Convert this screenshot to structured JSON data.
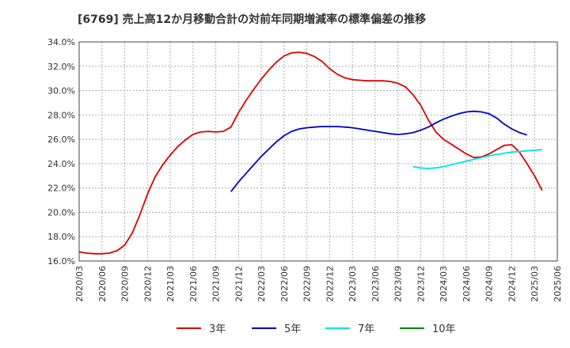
{
  "chart_data": {
    "type": "line",
    "title": "[6769]  売上高12か月移動合計の対前年同期増減率の標準偏差の推移",
    "xlabel": "",
    "ylabel": "",
    "ylim": [
      16.0,
      34.0
    ],
    "y_ticks": [
      "16.0%",
      "18.0%",
      "20.0%",
      "22.0%",
      "24.0%",
      "26.0%",
      "28.0%",
      "30.0%",
      "32.0%",
      "34.0%"
    ],
    "x_ticks": [
      "2020/03",
      "2020/06",
      "2020/09",
      "2020/12",
      "2021/03",
      "2021/06",
      "2021/09",
      "2021/12",
      "2022/03",
      "2022/06",
      "2022/09",
      "2022/12",
      "2023/03",
      "2023/06",
      "2023/09",
      "2023/12",
      "2024/03",
      "2024/06",
      "2024/09",
      "2024/12",
      "2025/03",
      "2025/06"
    ],
    "grid": true,
    "legend_position": "bottom",
    "series": [
      {
        "name": "3年",
        "color": "#dd0000",
        "start_index": 0,
        "values": [
          16.75,
          16.65,
          16.6,
          16.6,
          16.65,
          16.85,
          17.3,
          18.3,
          19.8,
          21.5,
          22.9,
          23.9,
          24.7,
          25.4,
          25.95,
          26.4,
          26.6,
          26.65,
          26.6,
          26.65,
          27.0,
          28.2,
          29.2,
          30.1,
          30.95,
          31.7,
          32.35,
          32.85,
          33.1,
          33.15,
          33.05,
          32.8,
          32.4,
          31.8,
          31.35,
          31.05,
          30.9,
          30.85,
          30.8,
          30.8,
          30.8,
          30.75,
          30.6,
          30.3,
          29.65,
          28.8,
          27.6,
          26.6,
          26.0,
          25.6,
          25.2,
          24.8,
          24.5,
          24.55,
          24.8,
          25.15,
          25.5,
          25.55,
          24.95,
          24.0,
          23.0,
          21.8
        ]
      },
      {
        "name": "5年",
        "color": "#0000cc",
        "start_index": 20,
        "values": [
          21.7,
          22.5,
          23.2,
          23.9,
          24.6,
          25.2,
          25.8,
          26.3,
          26.65,
          26.85,
          26.95,
          27.0,
          27.05,
          27.05,
          27.05,
          27.0,
          26.95,
          26.85,
          26.75,
          26.65,
          26.55,
          26.45,
          26.4,
          26.45,
          26.55,
          26.75,
          27.0,
          27.35,
          27.65,
          27.9,
          28.1,
          28.25,
          28.3,
          28.25,
          28.1,
          27.75,
          27.25,
          26.85,
          26.55,
          26.35
        ]
      },
      {
        "name": "7年",
        "color": "#00e5e5",
        "start_index": 44,
        "values": [
          23.75,
          23.65,
          23.6,
          23.65,
          23.75,
          23.9,
          24.05,
          24.2,
          24.35,
          24.5,
          24.65,
          24.75,
          24.85,
          24.95,
          25.0,
          25.05,
          25.1,
          25.15
        ]
      },
      {
        "name": "10年",
        "color": "#008800",
        "start_index": 0,
        "values": []
      }
    ]
  }
}
